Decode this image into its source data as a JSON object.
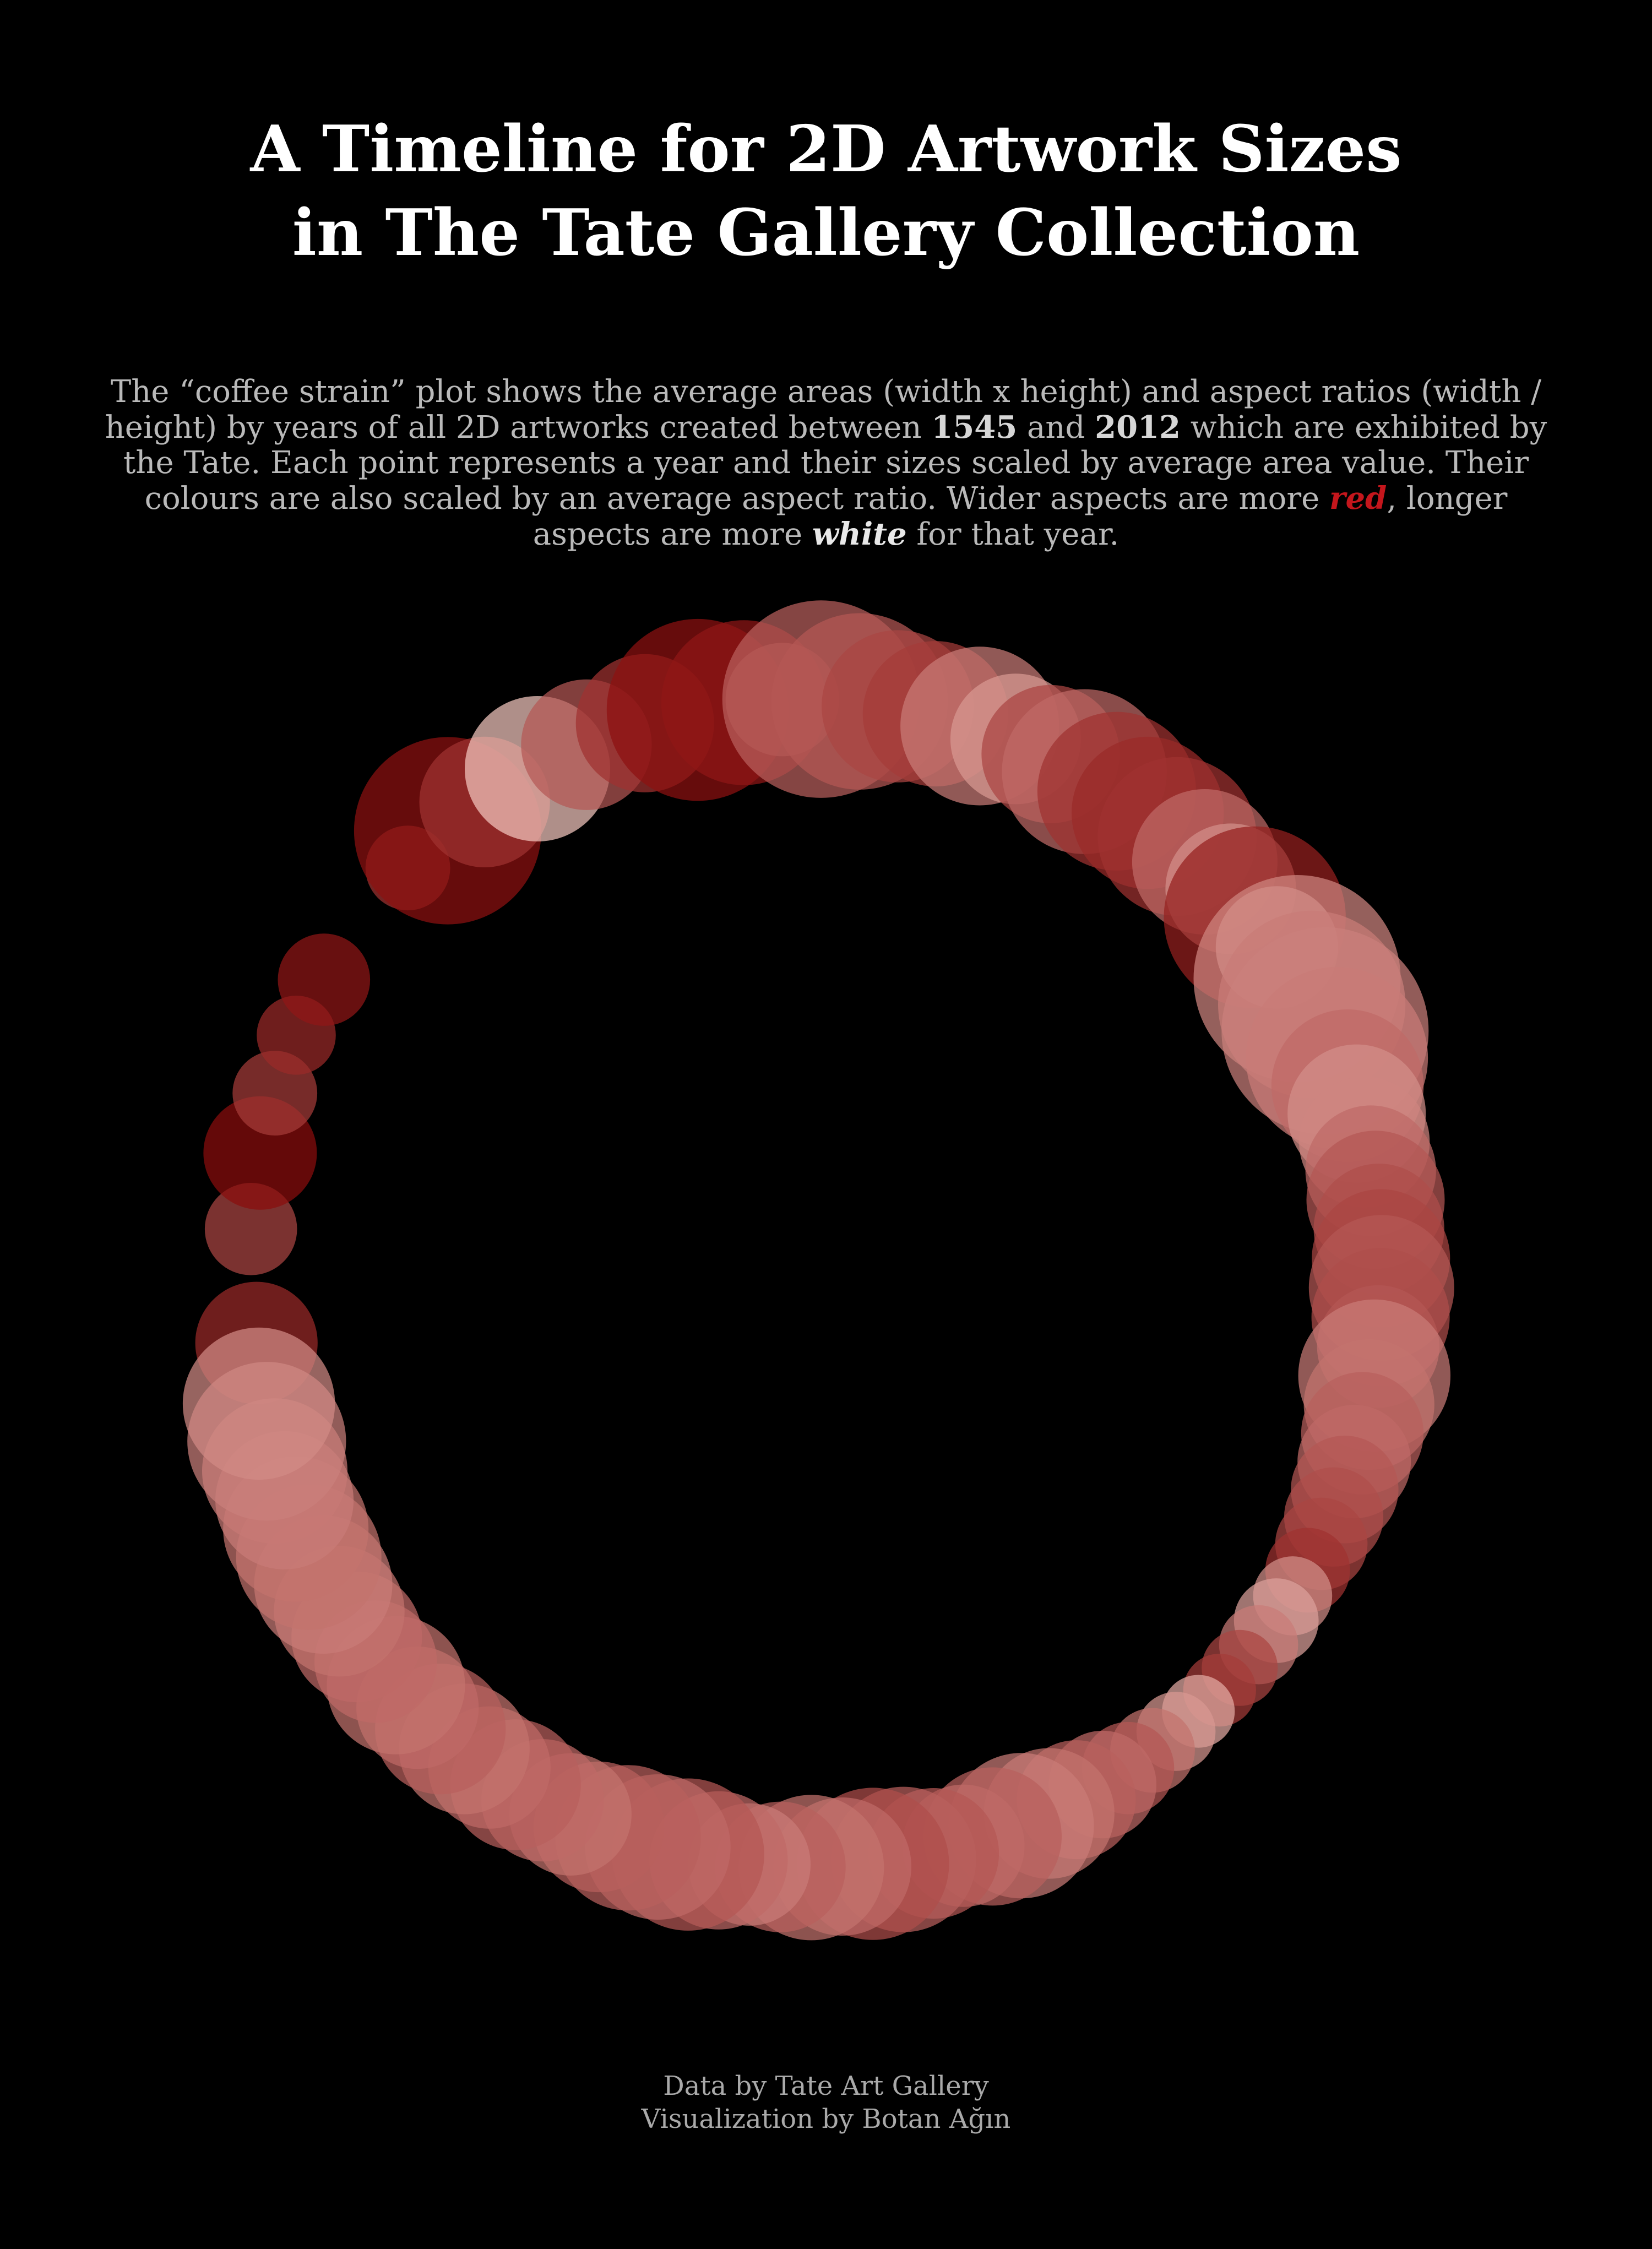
{
  "title": {
    "line1": "A Timeline for 2D Artwork Sizes",
    "line2": "in The Tate Gallery Collection"
  },
  "description": {
    "p1": "The “coffee strain” plot shows the average areas (width x height) and aspect ratios (width / height) by years of all 2D artworks created between ",
    "start_year": "1545",
    "and": " and ",
    "end_year": "2012",
    "p2": " which are exhibited by the Tate. Each point represents a year and their sizes scaled by average area value. Their colours are also scaled by an average aspect ratio. Wider aspects are more ",
    "red_word": "red",
    "p3": ", longer aspects are more ",
    "white_word": "white",
    "p4": " for that year."
  },
  "credits": {
    "line1": "Data by Tate Art Gallery",
    "line2": "Visualization by Botan Ağın"
  },
  "colors": {
    "background": "#000000",
    "wide_aspect": "#8b0d0d",
    "long_aspect": "#f2c6be",
    "red_word": "#c4161c"
  },
  "chart_data": {
    "type": "scatter",
    "layout": "polar-timeline",
    "year_range": [
      1545,
      2012
    ],
    "encoding": {
      "angle": "year (clockwise, starting at top)",
      "point_size": "average area (width x height)",
      "point_color": "average aspect ratio (width / height): wider = red, longer = white"
    },
    "points": [
      {
        "year": 1545,
        "area": 0.3,
        "aspect": 0.15
      },
      {
        "year": 1560,
        "area": 0.15,
        "aspect": 0.3
      },
      {
        "year": 1570,
        "area": 0.25,
        "aspect": 0.0
      },
      {
        "year": 1578,
        "area": 0.12,
        "aspect": 0.25
      },
      {
        "year": 1586,
        "area": 0.1,
        "aspect": 0.15
      },
      {
        "year": 1594,
        "area": 0.15,
        "aspect": 0.05
      },
      {
        "year": 1612,
        "area": 0.12,
        "aspect": 0.2
      },
      {
        "year": 1619,
        "area": 0.8,
        "aspect": 0.02
      },
      {
        "year": 1625,
        "area": 0.35,
        "aspect": 0.2
      },
      {
        "year": 1633,
        "area": 0.45,
        "aspect": 1.0
      },
      {
        "year": 1640,
        "area": 0.35,
        "aspect": 0.4
      },
      {
        "year": 1648,
        "area": 0.4,
        "aspect": 0.2
      },
      {
        "year": 1655,
        "area": 0.75,
        "aspect": 0.02
      },
      {
        "year": 1661,
        "area": 0.6,
        "aspect": 0.05
      },
      {
        "year": 1666,
        "area": 0.25,
        "aspect": 0.3
      },
      {
        "year": 1671,
        "area": 0.9,
        "aspect": 0.45
      },
      {
        "year": 1676,
        "area": 0.7,
        "aspect": 0.4
      },
      {
        "year": 1681,
        "area": 0.5,
        "aspect": 0.3
      },
      {
        "year": 1686,
        "area": 0.45,
        "aspect": 0.25
      },
      {
        "year": 1692,
        "area": 0.55,
        "aspect": 0.6
      },
      {
        "year": 1697,
        "area": 0.35,
        "aspect": 0.75
      },
      {
        "year": 1702,
        "area": 0.4,
        "aspect": 0.3
      },
      {
        "year": 1707,
        "area": 0.6,
        "aspect": 0.5
      },
      {
        "year": 1712,
        "area": 0.55,
        "aspect": 0.2
      },
      {
        "year": 1717,
        "area": 0.5,
        "aspect": 0.15
      },
      {
        "year": 1722,
        "area": 0.55,
        "aspect": 0.2
      },
      {
        "year": 1727,
        "area": 0.45,
        "aspect": 0.5
      },
      {
        "year": 1732,
        "area": 0.35,
        "aspect": 0.7
      },
      {
        "year": 1737,
        "area": 0.75,
        "aspect": 0.1
      },
      {
        "year": 1742,
        "area": 0.3,
        "aspect": 0.8
      },
      {
        "year": 1747,
        "area": 1.0,
        "aspect": 0.65
      },
      {
        "year": 1751,
        "area": 0.8,
        "aspect": 0.6
      },
      {
        "year": 1755,
        "area": 1.0,
        "aspect": 0.62
      },
      {
        "year": 1759,
        "area": 0.75,
        "aspect": 0.6
      },
      {
        "year": 1763,
        "area": 0.5,
        "aspect": 0.5
      },
      {
        "year": 1767,
        "area": 0.4,
        "aspect": 0.7
      },
      {
        "year": 1771,
        "area": 0.35,
        "aspect": 0.65
      },
      {
        "year": 1775,
        "area": 0.35,
        "aspect": 0.5
      },
      {
        "year": 1779,
        "area": 0.4,
        "aspect": 0.4
      },
      {
        "year": 1783,
        "area": 0.35,
        "aspect": 0.35
      },
      {
        "year": 1787,
        "area": 0.4,
        "aspect": 0.3
      },
      {
        "year": 1791,
        "area": 0.45,
        "aspect": 0.4
      },
      {
        "year": 1795,
        "area": 0.4,
        "aspect": 0.35
      },
      {
        "year": 1799,
        "area": 0.3,
        "aspect": 0.4
      },
      {
        "year": 1803,
        "area": 0.5,
        "aspect": 0.6
      },
      {
        "year": 1807,
        "area": 0.35,
        "aspect": 0.55
      },
      {
        "year": 1811,
        "area": 0.3,
        "aspect": 0.45
      },
      {
        "year": 1815,
        "area": 0.25,
        "aspect": 0.5
      },
      {
        "year": 1819,
        "area": 0.22,
        "aspect": 0.4
      },
      {
        "year": 1823,
        "area": 0.18,
        "aspect": 0.35
      },
      {
        "year": 1827,
        "area": 0.15,
        "aspect": 0.3
      },
      {
        "year": 1831,
        "area": 0.12,
        "aspect": 0.2
      },
      {
        "year": 1835,
        "area": 0.1,
        "aspect": 0.7
      },
      {
        "year": 1839,
        "area": 0.12,
        "aspect": 0.8
      },
      {
        "year": 1843,
        "area": 0.1,
        "aspect": 0.6
      },
      {
        "year": 1847,
        "area": 0.09,
        "aspect": 0.3
      },
      {
        "year": 1851,
        "area": 0.08,
        "aspect": 0.25
      },
      {
        "year": 1855,
        "area": 0.08,
        "aspect": 0.85
      },
      {
        "year": 1859,
        "area": 0.1,
        "aspect": 0.75
      },
      {
        "year": 1863,
        "area": 0.12,
        "aspect": 0.55
      },
      {
        "year": 1867,
        "area": 0.15,
        "aspect": 0.4
      },
      {
        "year": 1871,
        "area": 0.22,
        "aspect": 0.5
      },
      {
        "year": 1875,
        "area": 0.28,
        "aspect": 0.45
      },
      {
        "year": 1879,
        "area": 0.35,
        "aspect": 0.55
      },
      {
        "year": 1883,
        "area": 0.45,
        "aspect": 0.6
      },
      {
        "year": 1887,
        "area": 0.4,
        "aspect": 0.45
      },
      {
        "year": 1891,
        "area": 0.3,
        "aspect": 0.5
      },
      {
        "year": 1895,
        "area": 0.35,
        "aspect": 0.4
      },
      {
        "year": 1899,
        "area": 0.45,
        "aspect": 0.45
      },
      {
        "year": 1903,
        "area": 0.5,
        "aspect": 0.35
      },
      {
        "year": 1907,
        "area": 0.4,
        "aspect": 0.5
      },
      {
        "year": 1911,
        "area": 0.45,
        "aspect": 0.55
      },
      {
        "year": 1915,
        "area": 0.35,
        "aspect": 0.45
      },
      {
        "year": 1919,
        "area": 0.3,
        "aspect": 0.6
      },
      {
        "year": 1923,
        "area": 0.4,
        "aspect": 0.5
      },
      {
        "year": 1927,
        "area": 0.5,
        "aspect": 0.4
      },
      {
        "year": 1931,
        "area": 0.45,
        "aspect": 0.5
      },
      {
        "year": 1935,
        "area": 0.45,
        "aspect": 0.45
      },
      {
        "year": 1939,
        "area": 0.35,
        "aspect": 0.45
      },
      {
        "year": 1943,
        "area": 0.3,
        "aspect": 0.55
      },
      {
        "year": 1947,
        "area": 0.3,
        "aspect": 0.5
      },
      {
        "year": 1951,
        "area": 0.35,
        "aspect": 0.45
      },
      {
        "year": 1955,
        "area": 0.3,
        "aspect": 0.5
      },
      {
        "year": 1959,
        "area": 0.35,
        "aspect": 0.55
      },
      {
        "year": 1963,
        "area": 0.35,
        "aspect": 0.45
      },
      {
        "year": 1967,
        "area": 0.3,
        "aspect": 0.5
      },
      {
        "year": 1971,
        "area": 0.4,
        "aspect": 0.55
      },
      {
        "year": 1975,
        "area": 0.3,
        "aspect": 0.5
      },
      {
        "year": 1979,
        "area": 0.35,
        "aspect": 0.5
      },
      {
        "year": 1983,
        "area": 0.35,
        "aspect": 0.55
      },
      {
        "year": 1987,
        "area": 0.4,
        "aspect": 0.6
      },
      {
        "year": 1991,
        "area": 0.45,
        "aspect": 0.55
      },
      {
        "year": 1995,
        "area": 0.45,
        "aspect": 0.55
      },
      {
        "year": 1999,
        "area": 0.4,
        "aspect": 0.6
      },
      {
        "year": 2003,
        "area": 0.45,
        "aspect": 0.58
      },
      {
        "year": 2007,
        "area": 0.55,
        "aspect": 0.62
      },
      {
        "year": 2012,
        "area": 0.5,
        "aspect": 0.68
      }
    ]
  }
}
